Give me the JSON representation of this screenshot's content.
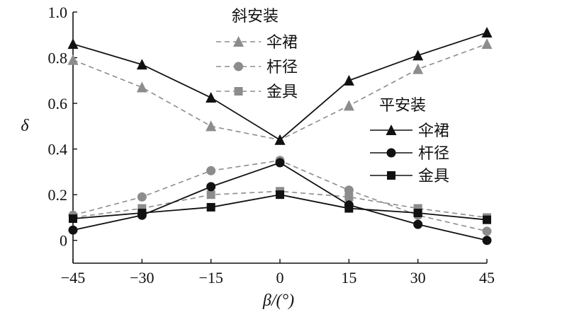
{
  "chart_data": {
    "type": "line",
    "x": [
      -45,
      -30,
      -15,
      0,
      15,
      30,
      45
    ],
    "xlim": [
      -45,
      45
    ],
    "ylim": [
      -0.1,
      1.0
    ],
    "xticks": [
      "−45",
      "−30",
      "−15",
      "0",
      "15",
      "30",
      "45"
    ],
    "yticks": [
      "0",
      "0.2",
      "0.4",
      "0.6",
      "0.8",
      "1.0"
    ],
    "ytick_values": [
      0,
      0.2,
      0.4,
      0.6,
      0.8,
      1.0
    ],
    "xlabel": "β/(°)",
    "ylabel": "δ",
    "grid": false,
    "legend_groups": [
      {
        "title": "斜安装",
        "position": "top-center"
      },
      {
        "title": "平安装",
        "position": "middle-right"
      }
    ],
    "series": [
      {
        "name": "伞裙",
        "group": "斜安装",
        "style": "dashed",
        "marker": "triangle",
        "color": "#8c8c8c",
        "values": [
          0.79,
          0.67,
          0.5,
          0.44,
          0.59,
          0.75,
          0.86
        ]
      },
      {
        "name": "杆径",
        "group": "斜安装",
        "style": "dashed",
        "marker": "circle",
        "color": "#8c8c8c",
        "values": [
          0.11,
          0.19,
          0.305,
          0.35,
          0.22,
          0.11,
          0.04
        ]
      },
      {
        "name": "金具",
        "group": "斜安装",
        "style": "dashed",
        "marker": "square",
        "color": "#8c8c8c",
        "values": [
          0.1,
          0.14,
          0.2,
          0.215,
          0.19,
          0.14,
          0.1
        ]
      },
      {
        "name": "伞裙",
        "group": "平安装",
        "style": "solid",
        "marker": "triangle",
        "color": "#111111",
        "values": [
          0.86,
          0.77,
          0.625,
          0.44,
          0.7,
          0.81,
          0.91
        ]
      },
      {
        "name": "杆径",
        "group": "平安装",
        "style": "solid",
        "marker": "circle",
        "color": "#111111",
        "values": [
          0.045,
          0.11,
          0.235,
          0.34,
          0.155,
          0.07,
          0.0
        ]
      },
      {
        "name": "金具",
        "group": "平安装",
        "style": "solid",
        "marker": "square",
        "color": "#111111",
        "values": [
          0.095,
          0.12,
          0.145,
          0.2,
          0.14,
          0.12,
          0.09
        ]
      }
    ]
  }
}
